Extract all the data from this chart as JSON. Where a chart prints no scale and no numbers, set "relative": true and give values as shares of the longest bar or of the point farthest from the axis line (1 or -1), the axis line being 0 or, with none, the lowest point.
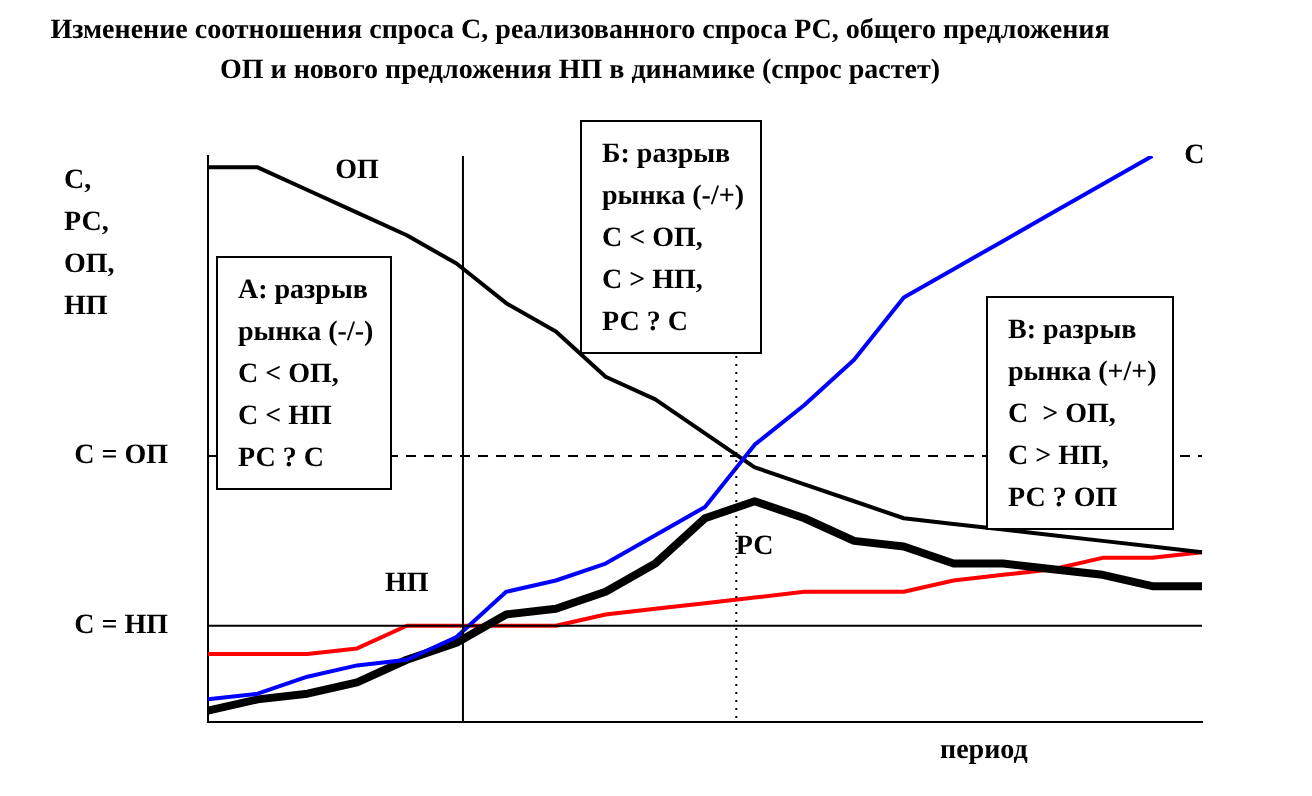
{
  "chart_data": {
    "type": "line",
    "relative": true,
    "title": "Изменение соотношения спроса С, реализованного спроса РС, общего предложения ОП и нового предложения НП в динамике (спрос растет)",
    "ylabel": "С,\nРС,\nОП,\nНП",
    "xlabel": "период",
    "categories": [
      null,
      null,
      null,
      null,
      null,
      null,
      null,
      null,
      null,
      null,
      null,
      null,
      null,
      null,
      null,
      null,
      null,
      null,
      null,
      null,
      null
    ],
    "series": [
      {
        "name": "С",
        "color": "#0000ff",
        "values": [
          0.04,
          0.05,
          0.08,
          0.1,
          0.11,
          0.15,
          0.23,
          0.25,
          0.28,
          0.33,
          0.38,
          0.49,
          0.56,
          0.64,
          0.75,
          0.8,
          0.85,
          0.9,
          0.95,
          1,
          null
        ]
      },
      {
        "name": "ОП",
        "color": "#000000",
        "values": [
          0.98,
          0.98,
          0.94,
          0.9,
          0.86,
          0.81,
          0.74,
          0.69,
          0.61,
          0.57,
          0.51,
          0.45,
          0.42,
          0.39,
          0.36,
          0.35,
          0.34,
          0.33,
          0.32,
          0.31,
          0.3
        ]
      },
      {
        "name": "РС",
        "color": "#000000",
        "values": [
          0.02,
          0.04,
          0.05,
          0.07,
          0.11,
          0.14,
          0.19,
          0.2,
          0.23,
          0.28,
          0.36,
          0.39,
          0.36,
          0.32,
          0.31,
          0.28,
          0.28,
          0.27,
          0.26,
          0.24,
          0.24
        ]
      },
      {
        "name": "НП",
        "color": "#ff0000",
        "values": [
          0.12,
          0.12,
          0.12,
          0.13,
          0.17,
          0.17,
          0.17,
          0.17,
          0.19,
          0.2,
          0.21,
          0.22,
          0.23,
          0.23,
          0.23,
          0.25,
          0.26,
          0.27,
          0.29,
          0.29,
          0.3
        ]
      }
    ],
    "ref_lines": [
      {
        "axis": "y",
        "value": 0.47,
        "label": "С = ОП",
        "line_style": "dashed"
      },
      {
        "axis": "y",
        "value": 0.17,
        "label": "С = НП",
        "line_style": "solid"
      }
    ],
    "annotations": [
      "А: разрыв\nрынка (-/-)\nС < ОП,\nС < НП\nРС ? С",
      "Б: разрыв\nрынка (-/+)\nС < ОП,\nС > НП,\nРС ? С",
      "В: разрыв\nрынка (+/+)\nС  > ОП,\nС > НП,\nРС ? ОП"
    ],
    "grid": false,
    "legend": false,
    "marker": "none",
    "line_style": "solid"
  }
}
